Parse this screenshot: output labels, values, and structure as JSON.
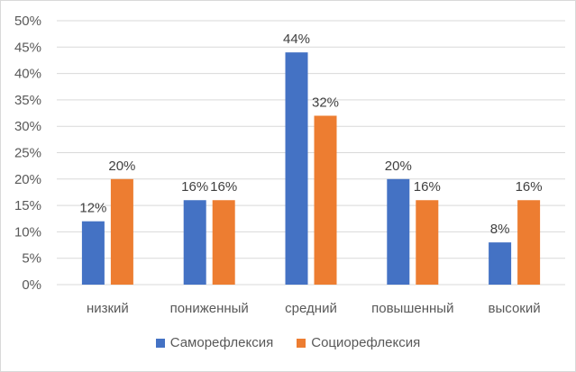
{
  "chart_data": {
    "type": "bar",
    "categories": [
      "низкий",
      "пониженный",
      "средний",
      "повышенный",
      "высокий"
    ],
    "series": [
      {
        "name": "Саморефлексия",
        "values": [
          12,
          16,
          44,
          20,
          8
        ],
        "labels": [
          "12%",
          "16%",
          "44%",
          "20%",
          "8%"
        ],
        "color": "#4472c4"
      },
      {
        "name": "Социорефлексия",
        "values": [
          20,
          16,
          32,
          16,
          16
        ],
        "labels": [
          "20%",
          "16%",
          "32%",
          "16%",
          "16%"
        ],
        "color": "#ed7d31"
      }
    ],
    "y_ticks": [
      "0%",
      "5%",
      "10%",
      "15%",
      "20%",
      "25%",
      "30%",
      "35%",
      "40%",
      "45%",
      "50%"
    ],
    "ylim": [
      0,
      50
    ],
    "grid": true,
    "legend_position": "bottom",
    "title": "",
    "xlabel": "",
    "ylabel": ""
  }
}
